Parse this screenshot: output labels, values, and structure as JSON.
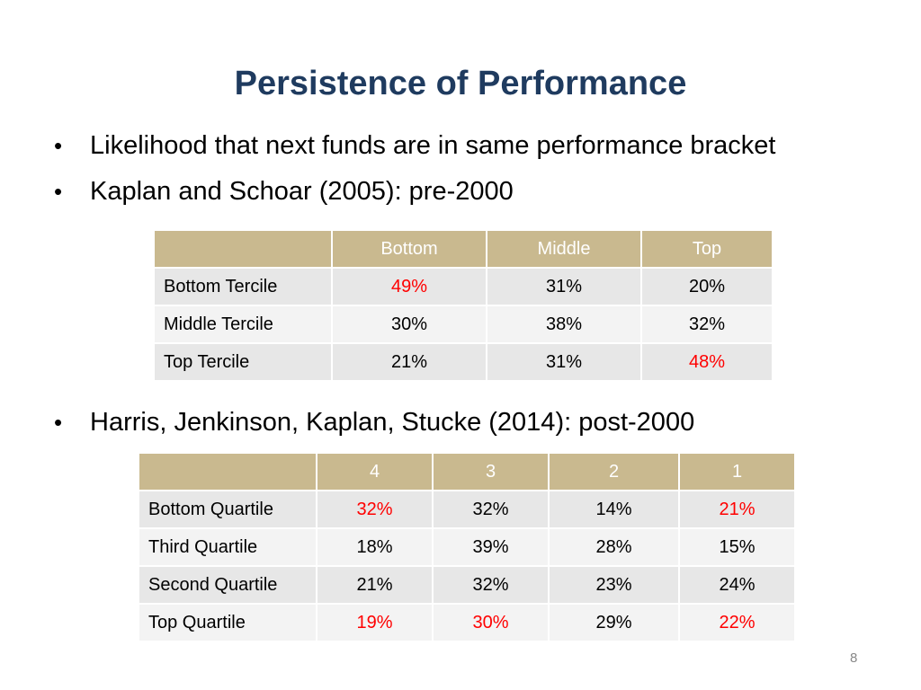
{
  "slide": {
    "title": "Persistence of Performance",
    "bullets": [
      "Likelihood that next funds are in same performance bracket",
      "Kaplan and Schoar (2005): pre-2000",
      "Harris, Jenkinson, Kaplan, Stucke (2014): post-2000"
    ],
    "bullet_glyph": "•",
    "page_number": "8"
  },
  "table1": {
    "headers": [
      "",
      "Bottom",
      "Middle",
      "Top"
    ],
    "rows": [
      {
        "label": "Bottom Tercile",
        "values": [
          "49%",
          "31%",
          "20%"
        ],
        "highlight": [
          true,
          false,
          false
        ]
      },
      {
        "label": "Middle Tercile",
        "values": [
          "30%",
          "38%",
          "32%"
        ],
        "highlight": [
          false,
          false,
          false
        ]
      },
      {
        "label": "Top Tercile",
        "values": [
          "21%",
          "31%",
          "48%"
        ],
        "highlight": [
          false,
          false,
          true
        ]
      }
    ]
  },
  "table2": {
    "headers": [
      "",
      "4",
      "3",
      "2",
      "1"
    ],
    "rows": [
      {
        "label": "Bottom Quartile",
        "values": [
          "32%",
          "32%",
          "14%",
          "21%"
        ],
        "highlight": [
          true,
          false,
          false,
          true
        ]
      },
      {
        "label": "Third Quartile",
        "values": [
          "18%",
          "39%",
          "28%",
          "15%"
        ],
        "highlight": [
          false,
          false,
          false,
          false
        ]
      },
      {
        "label": "Second Quartile",
        "values": [
          "21%",
          "32%",
          "23%",
          "24%"
        ],
        "highlight": [
          false,
          false,
          false,
          false
        ]
      },
      {
        "label": "Top Quartile",
        "values": [
          "19%",
          "30%",
          "29%",
          "22%"
        ],
        "highlight": [
          true,
          true,
          false,
          true
        ]
      }
    ]
  },
  "colors": {
    "title": "#1f3b5f",
    "header_bg": "#c9b98f",
    "row_odd": "#e7e7e7",
    "row_even": "#f3f3f3",
    "highlight_text": "#ff0000"
  }
}
